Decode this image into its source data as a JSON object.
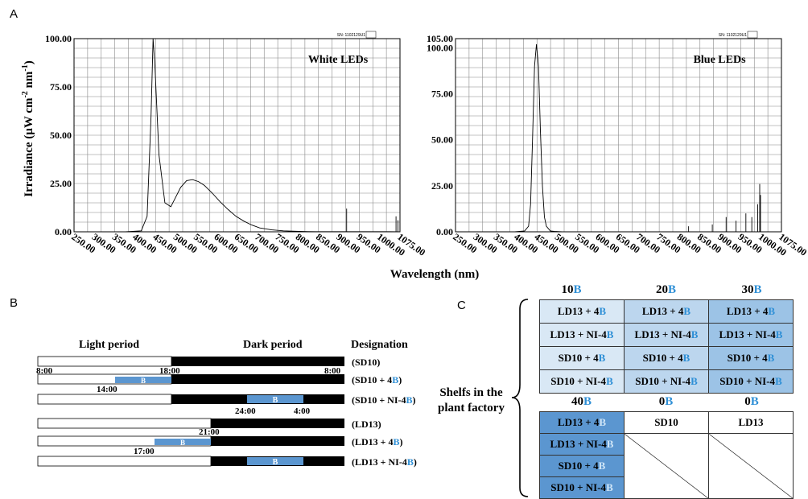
{
  "panel_labels": {
    "a": "A",
    "b": "B",
    "c": "C"
  },
  "panel_a": {
    "ylabel": "Irradiance (μW cm",
    "ylabel_sup1": "-2",
    "ylabel_mid": " nm",
    "ylabel_sup2": "-1",
    "ylabel_end": ")",
    "xlabel": "Wavelength (nm)",
    "x_ticks": [
      "250.00",
      "300.00",
      "350.00",
      "400.00",
      "450.00",
      "500.00",
      "550.00",
      "600.00",
      "650.00",
      "700.00",
      "750.00",
      "800.00",
      "850.00",
      "900.00",
      "950.00",
      "1000.00",
      "1075.00"
    ],
    "left_y_ticks": [
      "100.00",
      "75.00",
      "50.00",
      "25.00",
      "0.00"
    ],
    "right_y_ticks": [
      "105.00",
      "100.00",
      "75.00",
      "50.00",
      "25.00",
      "0.00"
    ],
    "sn_text": "SN: 1102129U1"
  },
  "chart_data": [
    {
      "type": "line",
      "title": "White LEDs",
      "xlabel": "Wavelength (nm)",
      "ylabel": "Irradiance (μW cm-2 nm-1)",
      "xlim": [
        250,
        1075
      ],
      "ylim": [
        0,
        100
      ],
      "grid": true,
      "series": [
        {
          "x": [
            250,
            380,
            420,
            435,
            445,
            450,
            455,
            465,
            480,
            495,
            505,
            520,
            535,
            550,
            565,
            580,
            600,
            620,
            640,
            660,
            680,
            700,
            720,
            750,
            780,
            820,
            860,
            900,
            940,
            950,
            960,
            1000,
            1050,
            1075
          ],
          "y": [
            0,
            0,
            0.5,
            8,
            60,
            100,
            85,
            40,
            15,
            13,
            17,
            23,
            26.5,
            27,
            26,
            24,
            20,
            15.5,
            11.5,
            8,
            5.5,
            3.5,
            2,
            1,
            0.5,
            0.2,
            0.1,
            0.1,
            0.1,
            0.1,
            0.1,
            0.1,
            0.1,
            0
          ]
        }
      ],
      "spikes": [
        {
          "x": 940,
          "y": 12
        },
        {
          "x": 1065,
          "y": 8
        },
        {
          "x": 1070,
          "y": 6
        }
      ]
    },
    {
      "type": "line",
      "title": "Blue LEDs",
      "xlabel": "Wavelength (nm)",
      "ylabel": "Irradiance (μW cm-2 nm-1)",
      "xlim": [
        250,
        1075
      ],
      "ylim": [
        0,
        105
      ],
      "grid": true,
      "series": [
        {
          "x": [
            250,
            400,
            425,
            435,
            440,
            445,
            450,
            455,
            460,
            465,
            470,
            475,
            480,
            490,
            500,
            520,
            600,
            800,
            900,
            1000,
            1075
          ],
          "y": [
            0,
            0,
            0.5,
            3,
            15,
            50,
            90,
            102,
            90,
            55,
            25,
            8,
            3,
            0.5,
            0.2,
            0,
            0,
            0,
            0,
            0,
            0
          ]
        }
      ],
      "spikes": [
        {
          "x": 840,
          "y": 3
        },
        {
          "x": 900,
          "y": 4
        },
        {
          "x": 935,
          "y": 8
        },
        {
          "x": 960,
          "y": 6
        },
        {
          "x": 985,
          "y": 10
        },
        {
          "x": 1000,
          "y": 8
        },
        {
          "x": 1015,
          "y": 15
        },
        {
          "x": 1020,
          "y": 26
        },
        {
          "x": 1022,
          "y": 20
        }
      ]
    }
  ],
  "panel_b": {
    "headers": {
      "light": "Light period",
      "dark": "Dark period",
      "designation": "Designation"
    },
    "rows": [
      {
        "name": "(SD10)",
        "base": "SD10",
        "suffix": ""
      },
      {
        "name": "(SD10 + 4",
        "base": "SD10 + 4",
        "suffix": ")"
      },
      {
        "name": "(SD10 + NI-4",
        "base": "SD10 + NI-4",
        "suffix": ")"
      },
      {
        "name": "(LD13)",
        "base": "LD13",
        "suffix": ""
      },
      {
        "name": "(LD13 + 4",
        "base": "LD13 + 4",
        "suffix": ")"
      },
      {
        "name": "(LD13 + NI-4",
        "base": "LD13 + NI-4",
        "suffix": ")"
      }
    ],
    "b_letter": "B",
    "times": {
      "t800a": "8:00",
      "t1800": "18:00",
      "t800b": "8:00",
      "t1400": "14:00",
      "t2400": "24:00",
      "t400": "4:00",
      "t2100": "21:00",
      "t1700": "17:00"
    }
  },
  "panel_c": {
    "side_label_1": "Shelfs in the",
    "side_label_2": "plant factory",
    "top_headers": [
      {
        "num": "10",
        "b": "B"
      },
      {
        "num": "20",
        "b": "B"
      },
      {
        "num": "30",
        "b": "B"
      }
    ],
    "bottom_headers": [
      {
        "num": "40",
        "b": "B"
      },
      {
        "num": "0",
        "b": "B"
      },
      {
        "num": "0",
        "b": "B"
      }
    ],
    "top_rows": [
      "LD13 + 4",
      "LD13 + NI-4",
      "SD10 + 4",
      "SD10 + NI-4"
    ],
    "b": "B",
    "bottom_col1": [
      "LD13 + 4",
      "LD13 + NI-4",
      "SD10 + 4",
      "SD10 + NI-4"
    ],
    "bottom_sd10": "SD10",
    "bottom_ld13": "LD13"
  },
  "colors": {
    "blue_text": "#2e8fd6",
    "b_bar": "#5b96d0"
  }
}
